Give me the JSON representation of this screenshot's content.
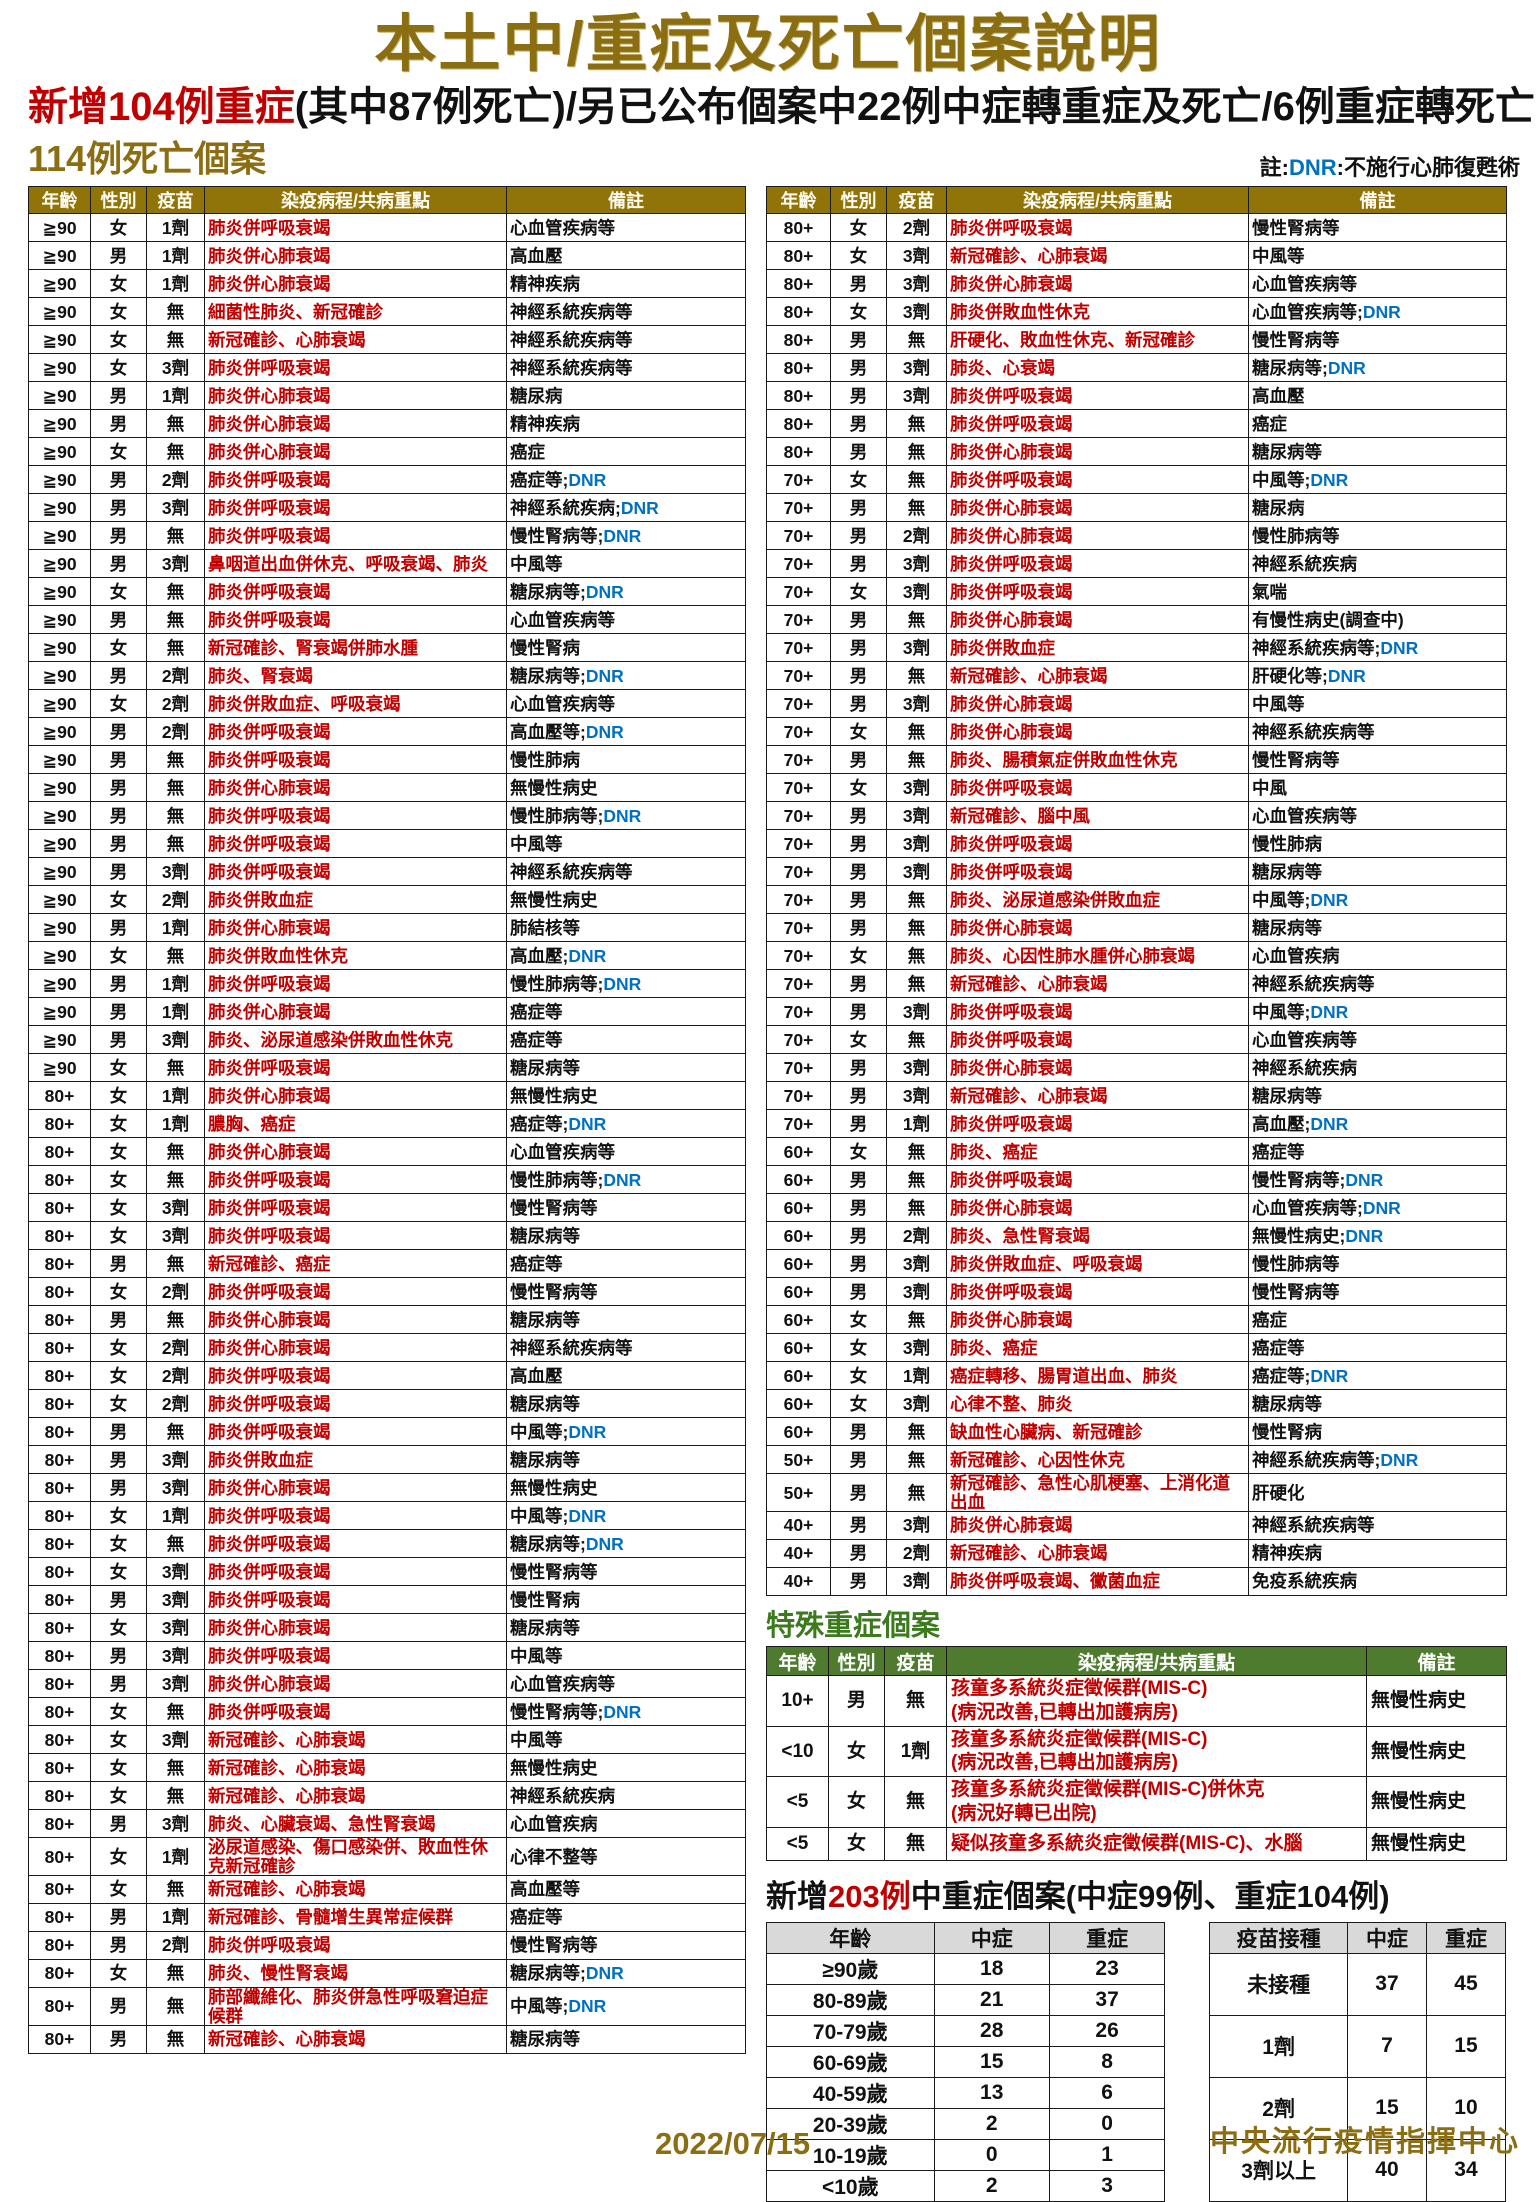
{
  "page": {
    "title": "本土中/重症及死亡個案說明",
    "subtitle_red": "新增104例重症",
    "subtitle_rest": "(其中87例死亡)/另已公布個案中22例中症轉重症及死亡/6例重症轉死亡",
    "deaths_heading": "114例死亡個案",
    "note_prefix": "註:",
    "note_dnr": "DNR",
    "note_suffix": ":不施行心肺復甦術",
    "footer_date": "2022/07/15",
    "footer_org": "中央流行疫情指揮中心"
  },
  "colors": {
    "title_gold": "#8b6d12",
    "header_olive": "#917408",
    "disease_red": "#c00000",
    "dnr_blue": "#0070c0",
    "special_green_bg": "#4e7b2e",
    "special_green_text": "#3c7a1e",
    "summary_header_gray": "#d9d9d9"
  },
  "death_table": {
    "headers": [
      "年齡",
      "性別",
      "疫苗",
      "染疫病程/共病重點",
      "備註"
    ],
    "dnr_separator": ";",
    "dnr_label": "DNR",
    "left_rows": [
      [
        "≧90",
        "女",
        "1劑",
        "肺炎併呼吸衰竭",
        "心血管疾病等",
        0
      ],
      [
        "≧90",
        "男",
        "1劑",
        "肺炎併心肺衰竭",
        "高血壓",
        0
      ],
      [
        "≧90",
        "女",
        "1劑",
        "肺炎併心肺衰竭",
        "精神疾病",
        0
      ],
      [
        "≧90",
        "女",
        "無",
        "細菌性肺炎、新冠確診",
        "神經系統疾病等",
        0
      ],
      [
        "≧90",
        "女",
        "無",
        "新冠確診、心肺衰竭",
        "神經系統疾病等",
        0
      ],
      [
        "≧90",
        "女",
        "3劑",
        "肺炎併呼吸衰竭",
        "神經系統疾病等",
        0
      ],
      [
        "≧90",
        "男",
        "1劑",
        "肺炎併心肺衰竭",
        "糖尿病",
        0
      ],
      [
        "≧90",
        "男",
        "無",
        "肺炎併心肺衰竭",
        "精神疾病",
        0
      ],
      [
        "≧90",
        "女",
        "無",
        "肺炎併心肺衰竭",
        "癌症",
        0
      ],
      [
        "≧90",
        "男",
        "2劑",
        "肺炎併呼吸衰竭",
        "癌症等",
        1
      ],
      [
        "≧90",
        "男",
        "3劑",
        "肺炎併呼吸衰竭",
        "神經系統疾病",
        1
      ],
      [
        "≧90",
        "男",
        "無",
        "肺炎併呼吸衰竭",
        "慢性腎病等",
        1
      ],
      [
        "≧90",
        "男",
        "3劑",
        "鼻咽道出血併休克、呼吸衰竭、肺炎",
        "中風等",
        0
      ],
      [
        "≧90",
        "女",
        "無",
        "肺炎併呼吸衰竭",
        "糖尿病等",
        1
      ],
      [
        "≧90",
        "男",
        "無",
        "肺炎併呼吸衰竭",
        "心血管疾病等",
        0
      ],
      [
        "≧90",
        "女",
        "無",
        "新冠確診、腎衰竭併肺水腫",
        "慢性腎病",
        0
      ],
      [
        "≧90",
        "男",
        "2劑",
        "肺炎、腎衰竭",
        "糖尿病等",
        1
      ],
      [
        "≧90",
        "女",
        "2劑",
        "肺炎併敗血症、呼吸衰竭",
        "心血管疾病等",
        0
      ],
      [
        "≧90",
        "男",
        "2劑",
        "肺炎併呼吸衰竭",
        "高血壓等",
        1
      ],
      [
        "≧90",
        "男",
        "無",
        "肺炎併呼吸衰竭",
        "慢性肺病",
        0
      ],
      [
        "≧90",
        "男",
        "無",
        "肺炎併心肺衰竭",
        "無慢性病史",
        0
      ],
      [
        "≧90",
        "男",
        "無",
        "肺炎併呼吸衰竭",
        "慢性肺病等",
        1
      ],
      [
        "≧90",
        "男",
        "無",
        "肺炎併呼吸衰竭",
        "中風等",
        0
      ],
      [
        "≧90",
        "男",
        "3劑",
        "肺炎併呼吸衰竭",
        "神經系統疾病等",
        0
      ],
      [
        "≧90",
        "女",
        "2劑",
        "肺炎併敗血症",
        "無慢性病史",
        0
      ],
      [
        "≧90",
        "男",
        "1劑",
        "肺炎併心肺衰竭",
        "肺結核等",
        0
      ],
      [
        "≧90",
        "女",
        "無",
        "肺炎併敗血性休克",
        "高血壓",
        1
      ],
      [
        "≧90",
        "男",
        "1劑",
        "肺炎併呼吸衰竭",
        "慢性肺病等",
        1
      ],
      [
        "≧90",
        "男",
        "1劑",
        "肺炎併心肺衰竭",
        "癌症等",
        0
      ],
      [
        "≧90",
        "男",
        "3劑",
        "肺炎、泌尿道感染併敗血性休克",
        "癌症等",
        0
      ],
      [
        "≧90",
        "女",
        "無",
        "肺炎併呼吸衰竭",
        "糖尿病等",
        0
      ],
      [
        "80+",
        "女",
        "1劑",
        "肺炎併心肺衰竭",
        "無慢性病史",
        0
      ],
      [
        "80+",
        "女",
        "1劑",
        "膿胸、癌症",
        "癌症等",
        1
      ],
      [
        "80+",
        "女",
        "無",
        "肺炎併心肺衰竭",
        "心血管疾病等",
        0
      ],
      [
        "80+",
        "女",
        "無",
        "肺炎併呼吸衰竭",
        "慢性肺病等",
        1
      ],
      [
        "80+",
        "女",
        "3劑",
        "肺炎併呼吸衰竭",
        "慢性腎病等",
        0
      ],
      [
        "80+",
        "女",
        "3劑",
        "肺炎併呼吸衰竭",
        "糖尿病等",
        0
      ],
      [
        "80+",
        "男",
        "無",
        "新冠確診、癌症",
        "癌症等",
        0
      ],
      [
        "80+",
        "女",
        "2劑",
        "肺炎併呼吸衰竭",
        "慢性腎病等",
        0
      ],
      [
        "80+",
        "男",
        "無",
        "肺炎併心肺衰竭",
        "糖尿病等",
        0
      ],
      [
        "80+",
        "女",
        "2劑",
        "肺炎併心肺衰竭",
        "神經系統疾病等",
        0
      ],
      [
        "80+",
        "女",
        "2劑",
        "肺炎併呼吸衰竭",
        "高血壓",
        0
      ],
      [
        "80+",
        "女",
        "2劑",
        "肺炎併呼吸衰竭",
        "糖尿病等",
        0
      ],
      [
        "80+",
        "男",
        "無",
        "肺炎併呼吸衰竭",
        "中風等",
        1
      ],
      [
        "80+",
        "男",
        "3劑",
        "肺炎併敗血症",
        "糖尿病等",
        0
      ],
      [
        "80+",
        "男",
        "3劑",
        "肺炎併心肺衰竭",
        "無慢性病史",
        0
      ],
      [
        "80+",
        "女",
        "1劑",
        "肺炎併呼吸衰竭",
        "中風等",
        1
      ],
      [
        "80+",
        "女",
        "無",
        "肺炎併呼吸衰竭",
        "糖尿病等",
        1
      ],
      [
        "80+",
        "女",
        "3劑",
        "肺炎併呼吸衰竭",
        "慢性腎病等",
        0
      ],
      [
        "80+",
        "男",
        "3劑",
        "肺炎併呼吸衰竭",
        "慢性腎病",
        0
      ],
      [
        "80+",
        "女",
        "3劑",
        "肺炎併心肺衰竭",
        "糖尿病等",
        0
      ],
      [
        "80+",
        "男",
        "3劑",
        "肺炎併呼吸衰竭",
        "中風等",
        0
      ],
      [
        "80+",
        "男",
        "3劑",
        "肺炎併心肺衰竭",
        "心血管疾病等",
        0
      ],
      [
        "80+",
        "女",
        "無",
        "肺炎併呼吸衰竭",
        "慢性腎病等",
        1
      ],
      [
        "80+",
        "女",
        "3劑",
        "新冠確診、心肺衰竭",
        "中風等",
        0
      ],
      [
        "80+",
        "女",
        "無",
        "新冠確診、心肺衰竭",
        "無慢性病史",
        0
      ],
      [
        "80+",
        "女",
        "無",
        "新冠確診、心肺衰竭",
        "神經系統疾病",
        0
      ],
      [
        "80+",
        "男",
        "3劑",
        "肺炎、心臟衰竭、急性腎衰竭",
        "心血管疾病",
        0
      ],
      [
        "80+",
        "女",
        "1劑",
        "泌尿道感染、傷口感染併、敗血性休克新冠確診",
        "心律不整等",
        0
      ],
      [
        "80+",
        "女",
        "無",
        "新冠確診、心肺衰竭",
        "高血壓等",
        0
      ],
      [
        "80+",
        "男",
        "1劑",
        "新冠確診、骨髓增生異常症候群",
        "癌症等",
        0
      ],
      [
        "80+",
        "男",
        "2劑",
        "肺炎併呼吸衰竭",
        "慢性腎病等",
        0
      ],
      [
        "80+",
        "女",
        "無",
        "肺炎、慢性腎衰竭",
        "糖尿病等",
        1
      ],
      [
        "80+",
        "男",
        "無",
        "肺部纖維化、肺炎併急性呼吸窘迫症候群",
        "中風等",
        1
      ],
      [
        "80+",
        "男",
        "無",
        "新冠確診、心肺衰竭",
        "糖尿病等",
        0
      ]
    ],
    "right_rows": [
      [
        "80+",
        "女",
        "2劑",
        "肺炎併呼吸衰竭",
        "慢性腎病等",
        0
      ],
      [
        "80+",
        "女",
        "3劑",
        "新冠確診、心肺衰竭",
        "中風等",
        0
      ],
      [
        "80+",
        "男",
        "3劑",
        "肺炎併心肺衰竭",
        "心血管疾病等",
        0
      ],
      [
        "80+",
        "女",
        "3劑",
        "肺炎併敗血性休克",
        "心血管疾病等",
        1
      ],
      [
        "80+",
        "男",
        "無",
        "肝硬化、敗血性休克、新冠確診",
        "慢性腎病等",
        0
      ],
      [
        "80+",
        "男",
        "3劑",
        "肺炎、心衰竭",
        "糖尿病等",
        1
      ],
      [
        "80+",
        "男",
        "3劑",
        "肺炎併呼吸衰竭",
        "高血壓",
        0
      ],
      [
        "80+",
        "男",
        "無",
        "肺炎併呼吸衰竭",
        "癌症",
        0
      ],
      [
        "80+",
        "男",
        "無",
        "肺炎併心肺衰竭",
        "糖尿病等",
        0
      ],
      [
        "70+",
        "女",
        "無",
        "肺炎併呼吸衰竭",
        "中風等",
        1
      ],
      [
        "70+",
        "男",
        "無",
        "肺炎併心肺衰竭",
        "糖尿病",
        0
      ],
      [
        "70+",
        "男",
        "2劑",
        "肺炎併心肺衰竭",
        "慢性肺病等",
        0
      ],
      [
        "70+",
        "男",
        "3劑",
        "肺炎併呼吸衰竭",
        "神經系統疾病",
        0
      ],
      [
        "70+",
        "女",
        "3劑",
        "肺炎併呼吸衰竭",
        "氣喘",
        0
      ],
      [
        "70+",
        "男",
        "無",
        "肺炎併心肺衰竭",
        "有慢性病史(調查中)",
        0
      ],
      [
        "70+",
        "男",
        "3劑",
        "肺炎併敗血症",
        "神經系統疾病等",
        1
      ],
      [
        "70+",
        "男",
        "無",
        "新冠確診、心肺衰竭",
        "肝硬化等",
        1
      ],
      [
        "70+",
        "男",
        "3劑",
        "肺炎併心肺衰竭",
        "中風等",
        0
      ],
      [
        "70+",
        "女",
        "無",
        "肺炎併心肺衰竭",
        "神經系統疾病等",
        0
      ],
      [
        "70+",
        "男",
        "無",
        "肺炎、腸積氣症併敗血性休克",
        "慢性腎病等",
        0
      ],
      [
        "70+",
        "女",
        "3劑",
        "肺炎併呼吸衰竭",
        "中風",
        0
      ],
      [
        "70+",
        "男",
        "3劑",
        "新冠確診、腦中風",
        "心血管疾病等",
        0
      ],
      [
        "70+",
        "男",
        "3劑",
        "肺炎併呼吸衰竭",
        "慢性肺病",
        0
      ],
      [
        "70+",
        "男",
        "3劑",
        "肺炎併呼吸衰竭",
        "糖尿病等",
        0
      ],
      [
        "70+",
        "男",
        "無",
        "肺炎、泌尿道感染併敗血症",
        "中風等",
        1
      ],
      [
        "70+",
        "男",
        "無",
        "肺炎併心肺衰竭",
        "糖尿病等",
        0
      ],
      [
        "70+",
        "女",
        "無",
        "肺炎、心因性肺水腫併心肺衰竭",
        "心血管疾病",
        0
      ],
      [
        "70+",
        "男",
        "無",
        "新冠確診、心肺衰竭",
        "神經系統疾病等",
        0
      ],
      [
        "70+",
        "男",
        "3劑",
        "肺炎併呼吸衰竭",
        "中風等",
        1
      ],
      [
        "70+",
        "女",
        "無",
        "肺炎併呼吸衰竭",
        "心血管疾病等",
        0
      ],
      [
        "70+",
        "男",
        "3劑",
        "肺炎併心肺衰竭",
        "神經系統疾病",
        0
      ],
      [
        "70+",
        "男",
        "3劑",
        "新冠確診、心肺衰竭",
        "糖尿病等",
        0
      ],
      [
        "70+",
        "男",
        "1劑",
        "肺炎併呼吸衰竭",
        "高血壓",
        1
      ],
      [
        "60+",
        "女",
        "無",
        "肺炎、癌症",
        "癌症等",
        0
      ],
      [
        "60+",
        "男",
        "無",
        "肺炎併呼吸衰竭",
        "慢性腎病等",
        1
      ],
      [
        "60+",
        "男",
        "無",
        "肺炎併心肺衰竭",
        "心血管疾病等",
        1
      ],
      [
        "60+",
        "男",
        "2劑",
        "肺炎、急性腎衰竭",
        "無慢性病史",
        1
      ],
      [
        "60+",
        "男",
        "3劑",
        "肺炎併敗血症、呼吸衰竭",
        "慢性肺病等",
        0
      ],
      [
        "60+",
        "男",
        "3劑",
        "肺炎併呼吸衰竭",
        "慢性腎病等",
        0
      ],
      [
        "60+",
        "女",
        "無",
        "肺炎併心肺衰竭",
        "癌症",
        0
      ],
      [
        "60+",
        "女",
        "3劑",
        "肺炎、癌症",
        "癌症等",
        0
      ],
      [
        "60+",
        "女",
        "1劑",
        "癌症轉移、腸胃道出血、肺炎",
        "癌症等",
        1
      ],
      [
        "60+",
        "女",
        "3劑",
        "心律不整、肺炎",
        "糖尿病等",
        0
      ],
      [
        "60+",
        "男",
        "無",
        "缺血性心臟病、新冠確診",
        "慢性腎病",
        0
      ],
      [
        "50+",
        "男",
        "無",
        "新冠確診、心因性休克",
        "神經系統疾病等",
        1
      ],
      [
        "50+",
        "男",
        "無",
        "新冠確診、急性心肌梗塞、上消化道出血",
        "肝硬化",
        0
      ],
      [
        "40+",
        "男",
        "3劑",
        "肺炎併心肺衰竭",
        "神經系統疾病等",
        0
      ],
      [
        "40+",
        "男",
        "2劑",
        "新冠確診、心肺衰竭",
        "精神疾病",
        0
      ],
      [
        "40+",
        "男",
        "3劑",
        "肺炎併呼吸衰竭、黴菌血症",
        "免疫系統疾病",
        0
      ]
    ]
  },
  "special_section": {
    "title": "特殊重症個案",
    "headers": [
      "年齡",
      "性別",
      "疫苗",
      "染疫病程/共病重點",
      "備註"
    ],
    "rows": [
      [
        "10+",
        "男",
        "無",
        "孩童多系統炎症徵候群(MIS-C)\n(病況改善,已轉出加護病房)",
        "無慢性病史"
      ],
      [
        "<10",
        "女",
        "1劑",
        "孩童多系統炎症徵候群(MIS-C)\n(病況改善,已轉出加護病房)",
        "無慢性病史"
      ],
      [
        "<5",
        "女",
        "無",
        "孩童多系統炎症徵候群(MIS-C)併休克\n(病況好轉已出院)",
        "無慢性病史"
      ],
      [
        "<5",
        "女",
        "無",
        "疑似孩童多系統炎症徵候群(MIS-C)、水腦",
        "無慢性病史"
      ]
    ]
  },
  "summary": {
    "heading_prefix": "新增",
    "heading_red": "203例",
    "heading_rest": "中重症個案(中症99例、重症104例)",
    "age_table": {
      "headers": [
        "年齡",
        "中症",
        "重症"
      ],
      "rows": [
        [
          "≥90歲",
          "18",
          "23"
        ],
        [
          "80-89歲",
          "21",
          "37"
        ],
        [
          "70-79歲",
          "28",
          "26"
        ],
        [
          "60-69歲",
          "15",
          "8"
        ],
        [
          "40-59歲",
          "13",
          "6"
        ],
        [
          "20-39歲",
          "2",
          "0"
        ],
        [
          "10-19歲",
          "0",
          "1"
        ],
        [
          "<10歲",
          "2",
          "3"
        ]
      ]
    },
    "vaccine_table": {
      "headers": [
        "疫苗接種",
        "中症",
        "重症"
      ],
      "rows": [
        [
          "未接種",
          "37",
          "45"
        ],
        [
          "1劑",
          "7",
          "15"
        ],
        [
          "2劑",
          "15",
          "10"
        ],
        [
          "3劑以上",
          "40",
          "34"
        ]
      ]
    }
  }
}
